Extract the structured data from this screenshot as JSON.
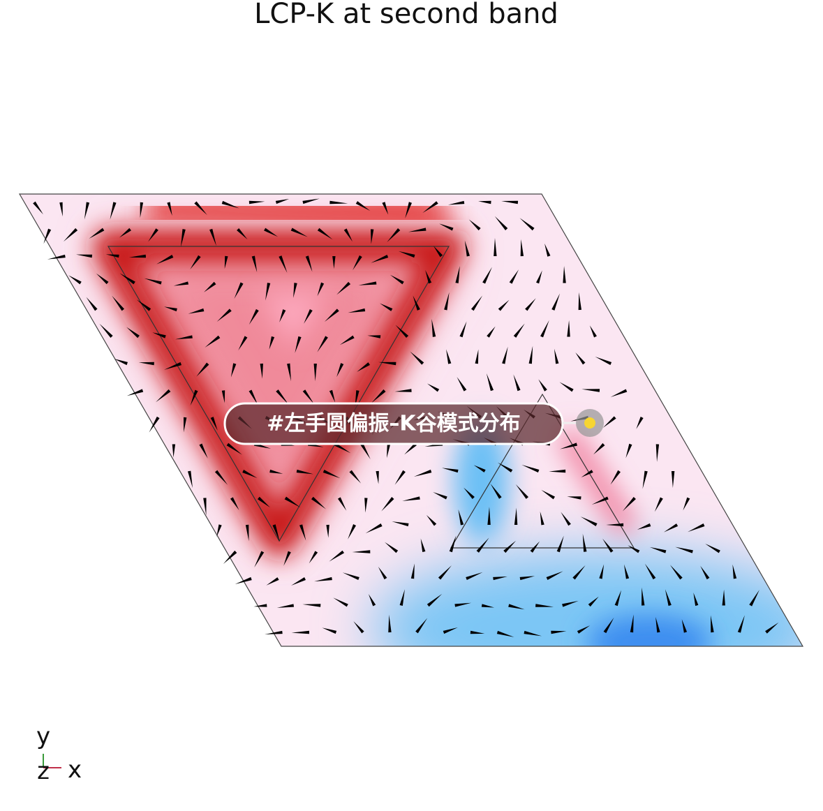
{
  "header": {
    "title": "LCP-K at second band"
  },
  "tag": {
    "label": "#左手圆偏振–K谷模式分布"
  },
  "axes": {
    "y": "y",
    "z": "z",
    "x": "x"
  }
}
